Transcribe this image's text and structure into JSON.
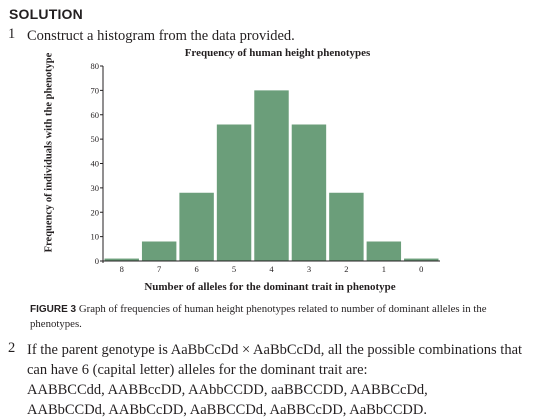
{
  "heading": "SOLUTION",
  "questions": [
    {
      "number": "1",
      "text": "Construct a histogram from the data provided."
    },
    {
      "number": "2",
      "text": "If the parent genotype is AaBbCcDd × AaBbCcDd, all the possible combinations that can have 6 (capital letter) alleles for the dominant trait are:"
    }
  ],
  "combinations": [
    "AABBCCdd, AABBccDD, AAbbCCDD, aaBBCCDD, AABBCcDd,",
    "AABbCCDd, AABbCcDD, AaBBCCDd, AaBBCcDD, AaBbCCDD."
  ],
  "chart_data": {
    "type": "bar",
    "title": "Frequency of human height phenotypes",
    "xlabel": "Number of alleles for the dominant trait in phenotype",
    "ylabel": "Frequency of individuals with the phenotype",
    "categories": [
      "8",
      "7",
      "6",
      "5",
      "4",
      "3",
      "2",
      "1",
      "0"
    ],
    "values": [
      1,
      8,
      28,
      56,
      70,
      56,
      28,
      8,
      1
    ],
    "yticks": [
      0,
      10,
      20,
      30,
      40,
      50,
      60,
      70,
      80
    ],
    "ylim": [
      0,
      80
    ],
    "bar_color": "#6b9e7a",
    "grid": false
  },
  "caption": {
    "label": "FIGURE 3",
    "text": "Graph of frequencies of human height phenotypes related to number of dominant alleles in the phenotypes."
  }
}
